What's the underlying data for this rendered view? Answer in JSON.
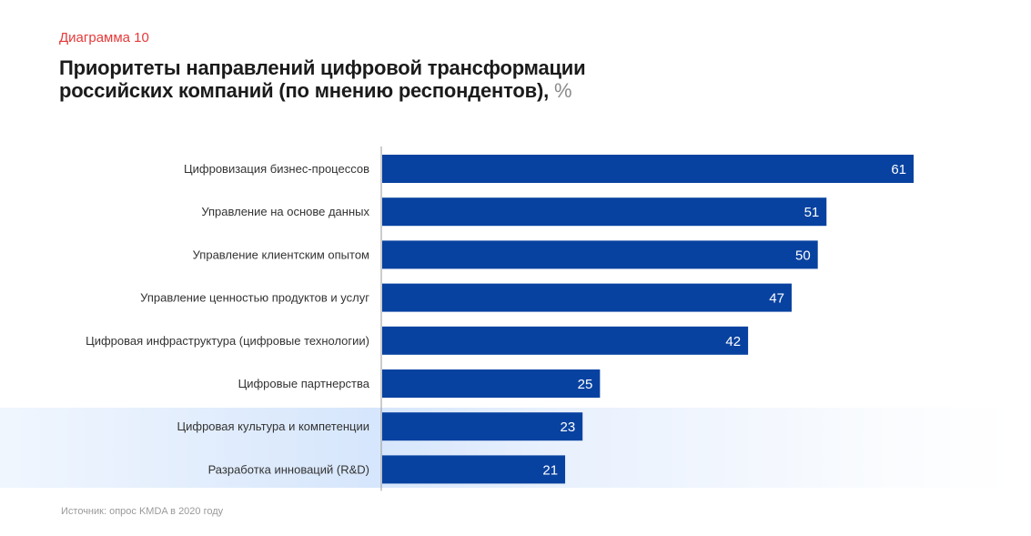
{
  "header": {
    "figure_label": "Диаграмма 10",
    "title_line1": "Приоритеты направлений цифровой трансформации",
    "title_line2": "российских компаний (по мнению респондентов),",
    "title_unit": "%"
  },
  "footer": {
    "source": "Источник: опрос KMDA в 2020 году"
  },
  "colors": {
    "bar": "#0842a0",
    "figure_label": "#e53a3a",
    "highlight_band": "#d6e6fc"
  },
  "chart_data": {
    "type": "bar",
    "orientation": "horizontal",
    "title": "Приоритеты направлений цифровой трансформации российских компаний (по мнению респондентов), %",
    "xlabel": "",
    "ylabel": "",
    "xlim": [
      0,
      61
    ],
    "grid": false,
    "legend": "none",
    "categories": [
      "Цифровизация бизнес-процессов",
      "Управление на основе данных",
      "Управление клиентским опытом",
      "Управление ценностью продуктов и услуг",
      "Цифровая инфраструктура (цифровые технологии)",
      "Цифровые партнерства",
      "Цифровая культура и компетенции",
      "Разработка инноваций (R&D)"
    ],
    "values": [
      61,
      51,
      50,
      47,
      42,
      25,
      23,
      21
    ],
    "highlighted_categories": [
      "Цифровая культура и компетенции",
      "Разработка инноваций (R&D)"
    ]
  }
}
